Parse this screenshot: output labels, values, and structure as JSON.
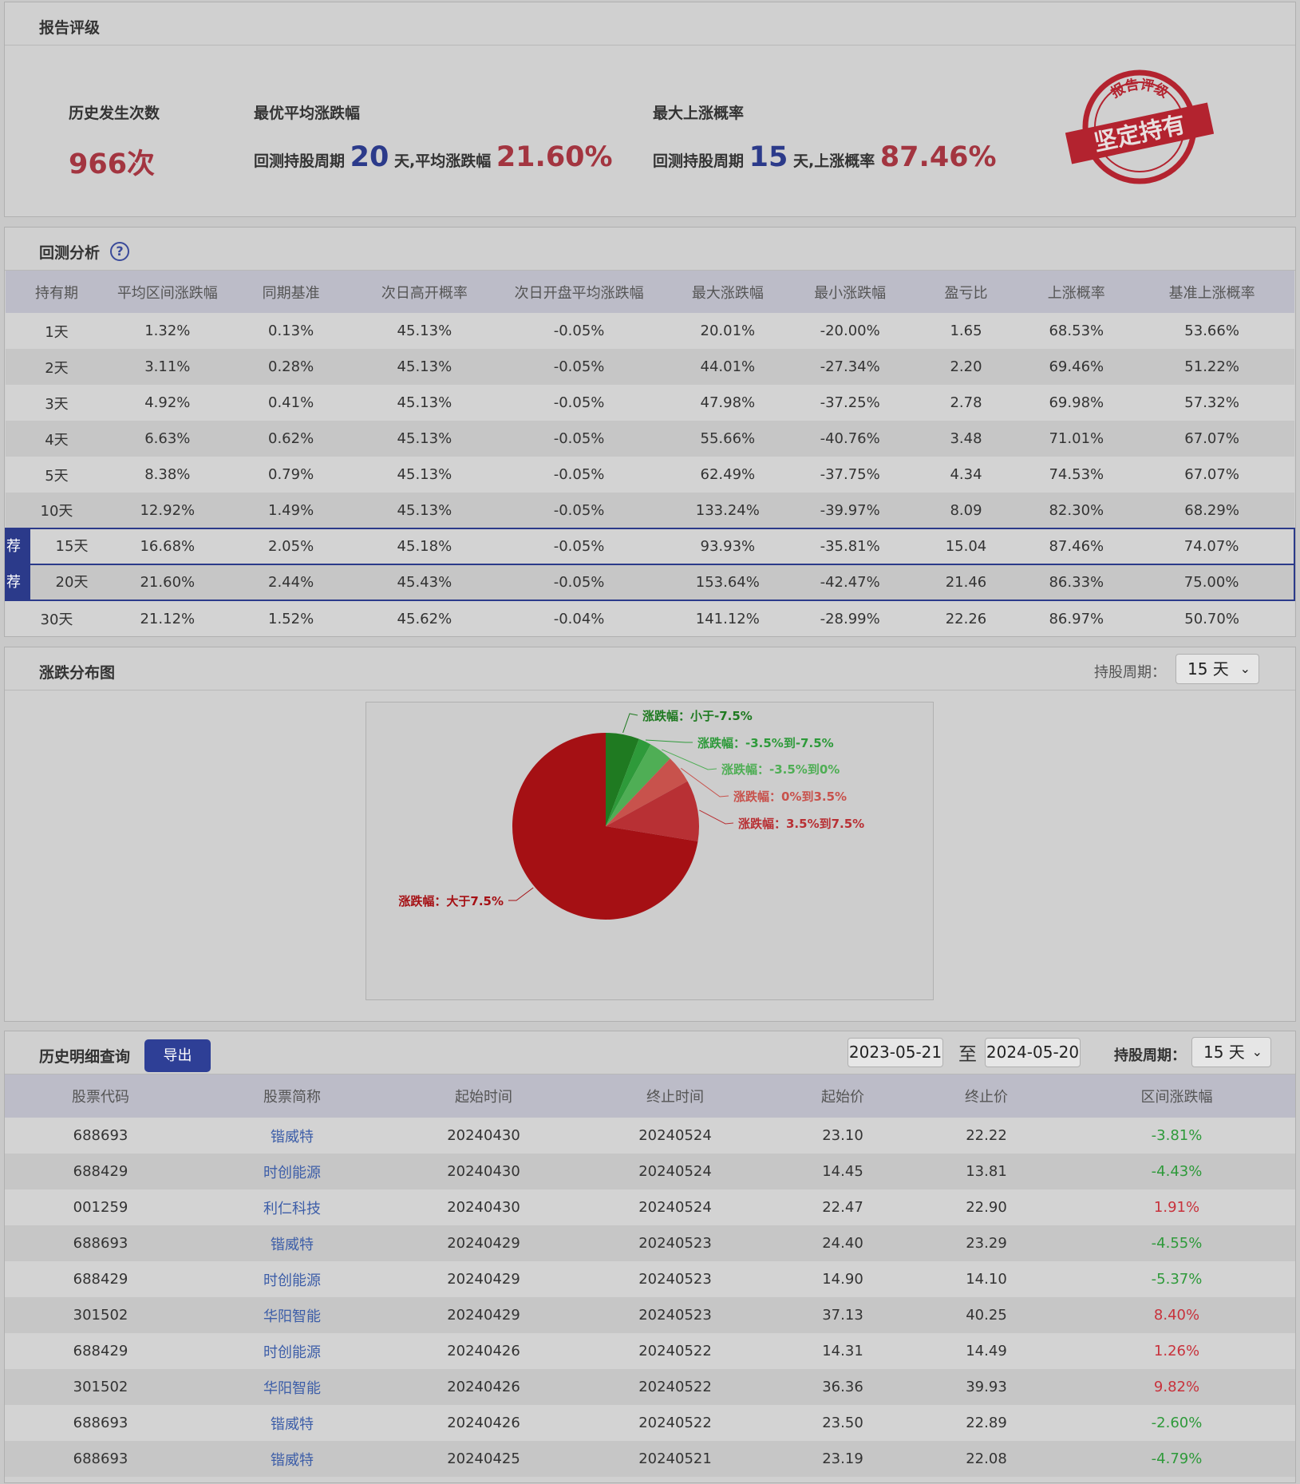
{
  "rating": {
    "title": "报告评级",
    "occurrences_label": "历史发生次数",
    "occurrences_value": "966次",
    "best_avg_label": "最优平均涨跌幅",
    "best_avg_prefix": "回测持股周期",
    "best_avg_days": "20",
    "best_avg_mid": "天,平均涨跌幅",
    "best_avg_value": "21.60%",
    "max_up_label": "最大上涨概率",
    "max_up_prefix": "回测持股周期",
    "max_up_days": "15",
    "max_up_mid": "天,上涨概率",
    "max_up_value": "87.46%",
    "stamp_top": "报告评级",
    "stamp_main": "坚定持有",
    "stamp_color": "#b3232f"
  },
  "backtest": {
    "title": "回测分析",
    "help_icon": "question-circle-icon",
    "help_glyph": "?",
    "rec_label": "荐",
    "headers": [
      "持有期",
      "平均区间涨跌幅",
      "同期基准",
      "次日高开概率",
      "次日开盘平均涨跌幅",
      "最大涨跌幅",
      "最小涨跌幅",
      "盈亏比",
      "上涨概率",
      "基准上涨概率"
    ],
    "rows": [
      {
        "period": "1天",
        "avg": "1.32%",
        "bench": "0.13%",
        "gap_up": "45.13%",
        "open_avg": "-0.05%",
        "max": "20.01%",
        "min": "-20.00%",
        "pl": "1.65",
        "up_prob": "68.53%",
        "bench_up": "53.66%",
        "rec": false
      },
      {
        "period": "2天",
        "avg": "3.11%",
        "bench": "0.28%",
        "gap_up": "45.13%",
        "open_avg": "-0.05%",
        "max": "44.01%",
        "min": "-27.34%",
        "pl": "2.20",
        "up_prob": "69.46%",
        "bench_up": "51.22%",
        "rec": false
      },
      {
        "period": "3天",
        "avg": "4.92%",
        "bench": "0.41%",
        "gap_up": "45.13%",
        "open_avg": "-0.05%",
        "max": "47.98%",
        "min": "-37.25%",
        "pl": "2.78",
        "up_prob": "69.98%",
        "bench_up": "57.32%",
        "rec": false
      },
      {
        "period": "4天",
        "avg": "6.63%",
        "bench": "0.62%",
        "gap_up": "45.13%",
        "open_avg": "-0.05%",
        "max": "55.66%",
        "min": "-40.76%",
        "pl": "3.48",
        "up_prob": "71.01%",
        "bench_up": "67.07%",
        "rec": false
      },
      {
        "period": "5天",
        "avg": "8.38%",
        "bench": "0.79%",
        "gap_up": "45.13%",
        "open_avg": "-0.05%",
        "max": "62.49%",
        "min": "-37.75%",
        "pl": "4.34",
        "up_prob": "74.53%",
        "bench_up": "67.07%",
        "rec": false
      },
      {
        "period": "10天",
        "avg": "12.92%",
        "bench": "1.49%",
        "gap_up": "45.13%",
        "open_avg": "-0.05%",
        "max": "133.24%",
        "min": "-39.97%",
        "pl": "8.09",
        "up_prob": "82.30%",
        "bench_up": "68.29%",
        "rec": false
      },
      {
        "period": "15天",
        "avg": "16.68%",
        "bench": "2.05%",
        "gap_up": "45.18%",
        "open_avg": "-0.05%",
        "max": "93.93%",
        "min": "-35.81%",
        "pl": "15.04",
        "up_prob": "87.46%",
        "bench_up": "74.07%",
        "rec": true
      },
      {
        "period": "20天",
        "avg": "21.60%",
        "bench": "2.44%",
        "gap_up": "45.43%",
        "open_avg": "-0.05%",
        "max": "153.64%",
        "min": "-42.47%",
        "pl": "21.46",
        "up_prob": "86.33%",
        "bench_up": "75.00%",
        "rec": true
      },
      {
        "period": "30天",
        "avg": "21.12%",
        "bench": "1.52%",
        "gap_up": "45.62%",
        "open_avg": "-0.04%",
        "max": "141.12%",
        "min": "-28.99%",
        "pl": "22.26",
        "up_prob": "86.97%",
        "bench_up": "50.70%",
        "rec": false
      }
    ]
  },
  "distribution": {
    "title": "涨跌分布图",
    "period_label": "持股周期：",
    "period_value": "15 天",
    "chevron_icon": "chevron-down-icon",
    "chevron_glyph": "⌄"
  },
  "chart_data": {
    "type": "pie",
    "title": "",
    "slices": [
      {
        "label": "涨跌幅：小于-7.5%",
        "value": 5.8,
        "color": "#1f7a21"
      },
      {
        "label": "涨跌幅：-3.5%到-7.5%",
        "value": 2.2,
        "color": "#2e9a3a"
      },
      {
        "label": "涨跌幅：-3.5%到0%",
        "value": 4.1,
        "color": "#4fae55"
      },
      {
        "label": "涨跌幅：0%到3.5%",
        "value": 4.9,
        "color": "#c8524c"
      },
      {
        "label": "涨跌幅：3.5%到7.5%",
        "value": 10.6,
        "color": "#b83034"
      },
      {
        "label": "涨跌幅：大于7.5%",
        "value": 72.4,
        "color": "#a51014"
      }
    ]
  },
  "history": {
    "title": "历史明细查询",
    "export_label": "导出",
    "date_from": "2023-05-21",
    "date_to_sep": "至",
    "date_to": "2024-05-20",
    "period_label": "持股周期：",
    "period_value": "15 天",
    "chevron_glyph": "⌄",
    "headers": [
      "股票代码",
      "股票简称",
      "起始时间",
      "终止时间",
      "起始价",
      "终止价",
      "区间涨跌幅"
    ],
    "rows": [
      {
        "code": "688693",
        "name": "锴威特",
        "start": "20240430",
        "end": "20240524",
        "p0": "23.10",
        "p1": "22.22",
        "chg": "-3.81%",
        "dir": "down"
      },
      {
        "code": "688429",
        "name": "时创能源",
        "start": "20240430",
        "end": "20240524",
        "p0": "14.45",
        "p1": "13.81",
        "chg": "-4.43%",
        "dir": "down"
      },
      {
        "code": "001259",
        "name": "利仁科技",
        "start": "20240430",
        "end": "20240524",
        "p0": "22.47",
        "p1": "22.90",
        "chg": "1.91%",
        "dir": "up"
      },
      {
        "code": "688693",
        "name": "锴威特",
        "start": "20240429",
        "end": "20240523",
        "p0": "24.40",
        "p1": "23.29",
        "chg": "-4.55%",
        "dir": "down"
      },
      {
        "code": "688429",
        "name": "时创能源",
        "start": "20240429",
        "end": "20240523",
        "p0": "14.90",
        "p1": "14.10",
        "chg": "-5.37%",
        "dir": "down"
      },
      {
        "code": "301502",
        "name": "华阳智能",
        "start": "20240429",
        "end": "20240523",
        "p0": "37.13",
        "p1": "40.25",
        "chg": "8.40%",
        "dir": "up"
      },
      {
        "code": "688429",
        "name": "时创能源",
        "start": "20240426",
        "end": "20240522",
        "p0": "14.31",
        "p1": "14.49",
        "chg": "1.26%",
        "dir": "up"
      },
      {
        "code": "301502",
        "name": "华阳智能",
        "start": "20240426",
        "end": "20240522",
        "p0": "36.36",
        "p1": "39.93",
        "chg": "9.82%",
        "dir": "up"
      },
      {
        "code": "688693",
        "name": "锴威特",
        "start": "20240426",
        "end": "20240522",
        "p0": "23.50",
        "p1": "22.89",
        "chg": "-2.60%",
        "dir": "down"
      },
      {
        "code": "688693",
        "name": "锴威特",
        "start": "20240425",
        "end": "20240521",
        "p0": "23.19",
        "p1": "22.08",
        "chg": "-4.79%",
        "dir": "down"
      }
    ]
  }
}
